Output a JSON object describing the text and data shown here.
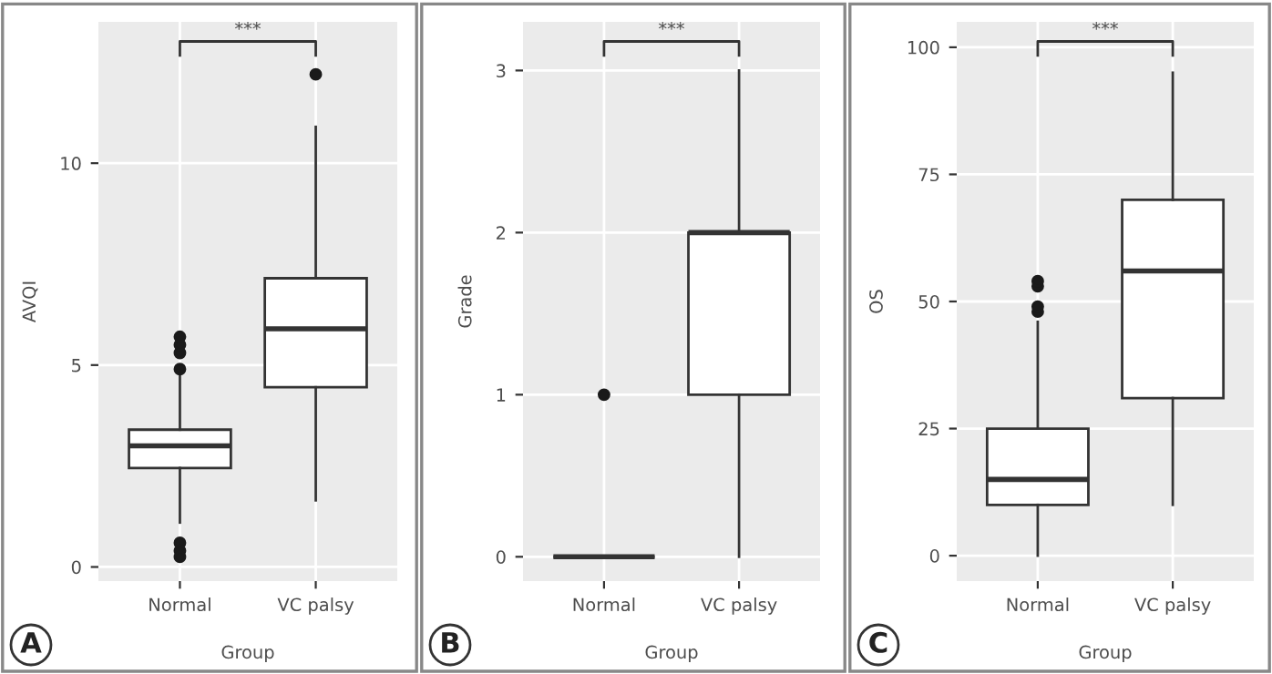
{
  "chart_data": [
    {
      "type": "box",
      "categories": [
        "Normal",
        "VC palsy"
      ],
      "xlabel": "Group",
      "ylabel": "AVQI",
      "ylim": [
        -0.35,
        13.5
      ],
      "yticks": [
        0,
        5,
        10
      ],
      "grid": true,
      "annotations": [
        "***",
        "A"
      ],
      "boxes": [
        {
          "low": 1.1,
          "q1": 2.45,
          "median": 3.0,
          "q3": 3.4,
          "high": 4.75,
          "outliers": [
            4.9,
            5.3,
            5.5,
            5.7,
            0.6,
            0.4,
            0.25
          ]
        },
        {
          "low": 1.65,
          "q1": 4.45,
          "median": 5.9,
          "q3": 7.15,
          "high": 10.9,
          "outliers": [
            12.2
          ]
        }
      ]
    },
    {
      "type": "box",
      "categories": [
        "Normal",
        "VC palsy"
      ],
      "xlabel": "Group",
      "ylabel": "Grade",
      "ylim": [
        -0.15,
        3.3
      ],
      "yticks": [
        0,
        1,
        2,
        3
      ],
      "grid": true,
      "annotations": [
        "***",
        "B"
      ],
      "boxes": [
        {
          "low": 0,
          "q1": 0,
          "median": 0,
          "q3": 0,
          "high": 0,
          "outliers": [
            1
          ]
        },
        {
          "low": 0,
          "q1": 1,
          "median": 2,
          "q3": 2,
          "high": 3
        }
      ]
    },
    {
      "type": "box",
      "categories": [
        "Normal",
        "VC palsy"
      ],
      "xlabel": "Group",
      "ylabel": "OS",
      "ylim": [
        -5,
        105
      ],
      "yticks": [
        0,
        25,
        50,
        75,
        100
      ],
      "grid": true,
      "annotations": [
        "***",
        "C"
      ],
      "boxes": [
        {
          "low": 0,
          "q1": 10,
          "median": 15,
          "q3": 25,
          "high": 46,
          "outliers": [
            48,
            49,
            53,
            54
          ]
        },
        {
          "low": 10,
          "q1": 31,
          "median": 56,
          "q3": 70,
          "high": 95
        }
      ]
    }
  ]
}
